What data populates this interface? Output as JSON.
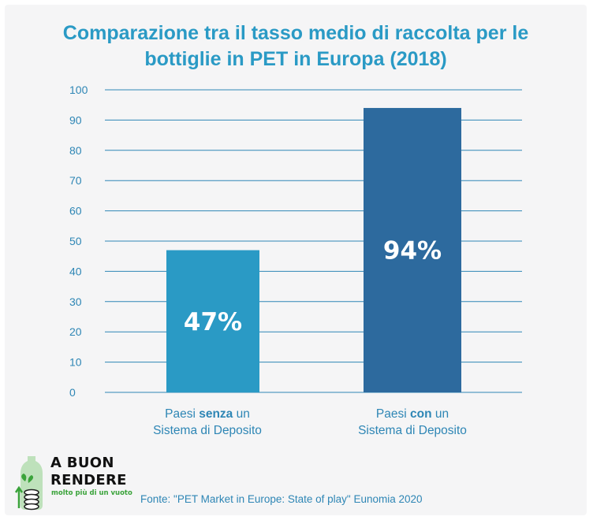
{
  "chart_data": {
    "type": "bar",
    "title": "Comparazione tra il tasso medio di raccolta per le bottiglie in PET in Europa (2018)",
    "title_lines": [
      "Comparazione tra il tasso medio di raccolta per le",
      "bottiglie in PET in Europa (2018)"
    ],
    "categories": [
      {
        "pre": "Paesi ",
        "bold": "senza",
        "post": " un",
        "line2": "Sistema di Deposito"
      },
      {
        "pre": "Paesi ",
        "bold": "con",
        "post": " un",
        "line2": "Sistema di Deposito"
      }
    ],
    "values": [
      47,
      94
    ],
    "data_labels": [
      "47%",
      "94%"
    ],
    "bar_colors": [
      "#2a9ac5",
      "#2d6a9e"
    ],
    "yticks": [
      0,
      10,
      20,
      30,
      40,
      50,
      60,
      70,
      80,
      90,
      100
    ],
    "ylim": [
      0,
      100
    ],
    "grid": true,
    "legend": "none"
  },
  "source": "Fonte: \"PET Market in Europe: State of play\" Eunomia 2020",
  "logo": {
    "name_lines": [
      "A BUON",
      "RENDERE"
    ],
    "tagline": "molto più di un vuoto",
    "icon": "bottle-coins-logo-icon"
  },
  "colors": {
    "accent": "#2a9ac5",
    "axis_text": "#2e86b5",
    "grid": "#2e86b5",
    "background": "#f5f5f6",
    "logo_green": "#3aa33a"
  }
}
